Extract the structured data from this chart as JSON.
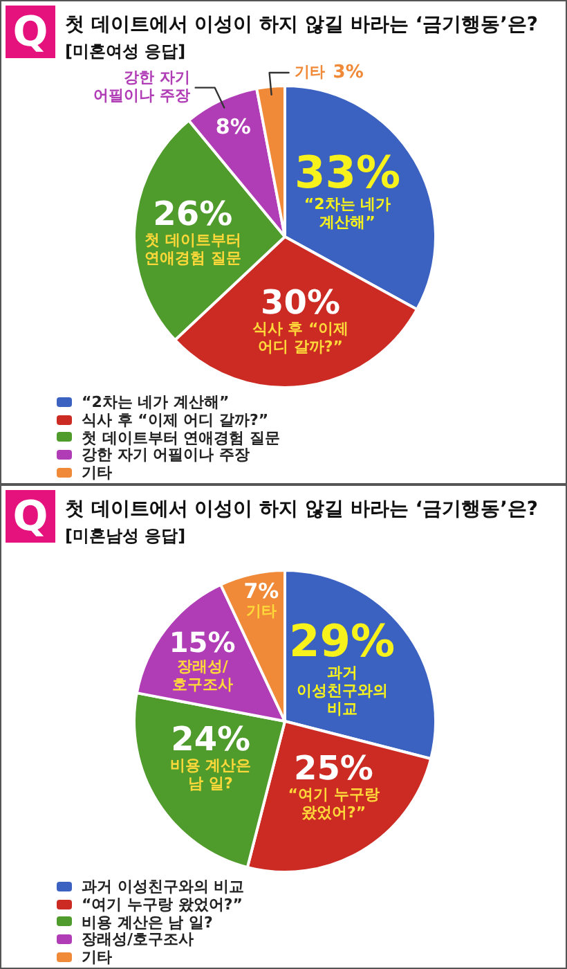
{
  "chart_data": [
    {
      "type": "pie",
      "title": "첫 데이트에서 이성이 하지 않길 바라는 ‘금기행동’은?",
      "subtitle": "[미혼여성 응답]",
      "annotations": [
        "Q"
      ],
      "categories": [
        "“2차는 네가 계산해”",
        "식사 후 “이제 어디 갈까?”",
        "첫 데이트부터 연애경험 질문",
        "강한 자기 어필이나 주장",
        "기타"
      ],
      "values": [
        33,
        30,
        26,
        8,
        3
      ],
      "value_labels": [
        "33%",
        "30%",
        "26%",
        "8%",
        "3%"
      ],
      "colors": [
        "#3b62c0",
        "#cc2b24",
        "#4f9b2c",
        "#b03db5",
        "#f08a38"
      ],
      "legend": "bottom"
    },
    {
      "type": "pie",
      "title": "첫 데이트에서 이성이 하지 않길 바라는 ‘금기행동’은?",
      "subtitle": "[미혼남성 응답]",
      "annotations": [
        "Q"
      ],
      "categories": [
        "과거 이성친구와의 비교",
        "“여기 누구랑 왔었어?”",
        "비용 계산은 남 일?",
        "장래성/호구조사",
        "기타"
      ],
      "values": [
        29,
        25,
        24,
        15,
        7
      ],
      "value_labels": [
        "29%",
        "25%",
        "24%",
        "15%",
        "7%"
      ],
      "colors": [
        "#3b62c0",
        "#cc2b24",
        "#4f9b2c",
        "#b03db5",
        "#f08a38"
      ],
      "legend": "bottom"
    }
  ]
}
